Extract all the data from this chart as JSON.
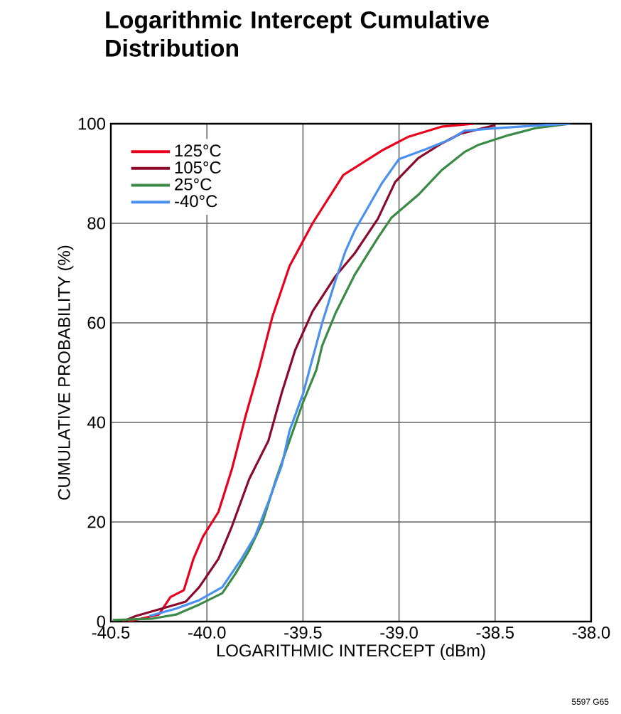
{
  "chart_data": {
    "type": "line",
    "title": "Logarithmic Intercept Cumulative Distribution",
    "xlabel": "LOGARITHMIC INTERCEPT (dBm)",
    "ylabel": "CUMULATIVE PROBABILITY (%)",
    "annotations": [
      "5597 G65"
    ],
    "xlim": [
      -40.5,
      -38.0
    ],
    "ylim": [
      0,
      100
    ],
    "xticks": [
      -40.5,
      {
        "value": -40.0,
        "label": "-40.0"
      },
      -39.5,
      {
        "value": -39.0,
        "label": "-39.0"
      },
      -38.5,
      {
        "value": -38.0,
        "label": "-38.0"
      }
    ],
    "yticks": [
      0,
      20,
      40,
      60,
      80,
      100
    ],
    "grid": true,
    "legend": "top left",
    "marker": "none",
    "line_style": "solid",
    "series": [
      {
        "name": "125°C",
        "color": "#e8001c",
        "x": [
          -40.41,
          -40.25,
          -40.19,
          -40.12,
          -40.07,
          -40.02,
          -39.94,
          -39.87,
          -39.8,
          -39.73,
          -39.66,
          -39.57,
          -39.45,
          -39.29,
          -39.09,
          -38.95,
          -38.78,
          -38.61
        ],
        "values": [
          0,
          1.4,
          4.9,
          6.3,
          12.6,
          17.1,
          22.0,
          30.6,
          41.1,
          50.6,
          61.1,
          71.4,
          80.0,
          89.7,
          94.6,
          97.4,
          99.4,
          100
        ]
      },
      {
        "name": "105°C",
        "color": "#8b0a2a",
        "x": [
          -40.44,
          -40.37,
          -40.11,
          -40.04,
          -39.94,
          -39.87,
          -39.78,
          -39.68,
          -39.61,
          -39.54,
          -39.45,
          -39.33,
          -39.23,
          -39.11,
          -39.02,
          -38.9,
          -38.78,
          -38.68,
          -38.5
        ],
        "values": [
          0,
          1.1,
          4.0,
          6.9,
          12.6,
          19.1,
          28.6,
          36.3,
          46.0,
          54.6,
          62.3,
          69.4,
          74.0,
          80.9,
          88.3,
          93.1,
          96.0,
          98.0,
          99.7
        ]
      },
      {
        "name": "25°C",
        "color": "#3a8a46",
        "x": [
          -40.49,
          -40.28,
          -40.16,
          -40.04,
          -39.92,
          -39.85,
          -39.78,
          -39.71,
          -39.64,
          -39.57,
          -39.5,
          -39.43,
          -39.4,
          -39.33,
          -39.23,
          -39.11,
          -39.04,
          -38.9,
          -38.78,
          -38.66,
          -38.59,
          -38.43,
          -38.29,
          -38.11
        ],
        "values": [
          0.3,
          0.6,
          1.4,
          3.4,
          5.7,
          9.7,
          14.3,
          20.0,
          28.6,
          36.3,
          44.0,
          50.6,
          55.4,
          62.0,
          69.7,
          77.1,
          81.1,
          85.7,
          90.6,
          94.3,
          95.7,
          97.7,
          99.1,
          100
        ]
      },
      {
        "name": "-40°C",
        "color": "#4a90f0",
        "x": [
          -40.3,
          -40.16,
          -40.04,
          -39.92,
          -39.82,
          -39.75,
          -39.68,
          -39.61,
          -39.57,
          -39.5,
          -39.4,
          -39.33,
          -39.28,
          -39.23,
          -39.09,
          -39.0,
          -38.86,
          -38.73,
          -38.66,
          -38.5,
          -38.26,
          -38.11
        ],
        "values": [
          1.1,
          2.6,
          4.3,
          6.9,
          12.6,
          17.1,
          24.0,
          31.4,
          38.3,
          45.7,
          60.0,
          68.6,
          74.3,
          78.6,
          88.0,
          92.9,
          94.9,
          96.9,
          98.6,
          99.1,
          99.7,
          100
        ]
      }
    ]
  }
}
